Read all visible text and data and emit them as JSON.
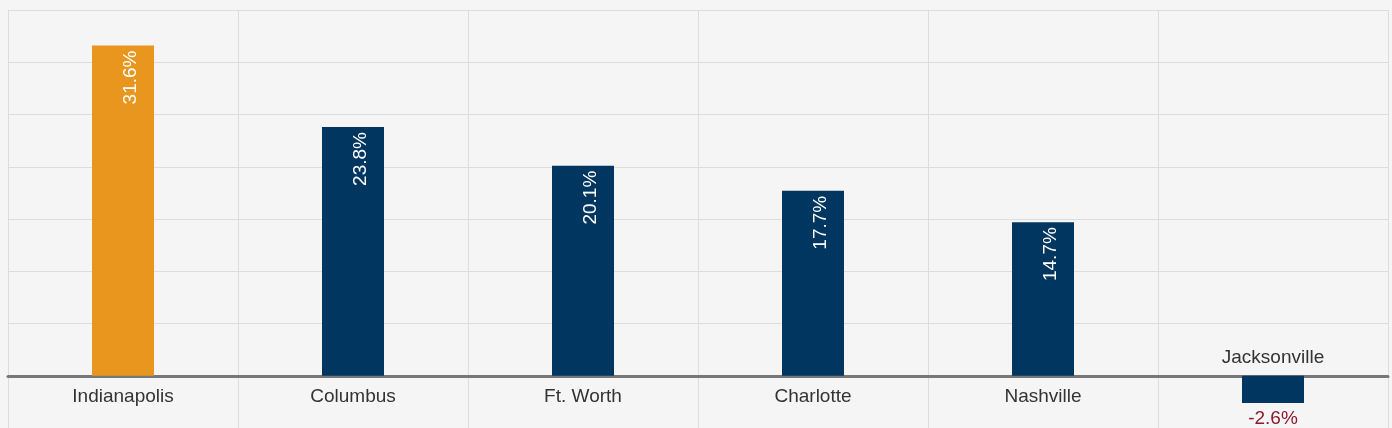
{
  "chart_data": {
    "type": "bar",
    "categories": [
      "Indianapolis",
      "Columbus",
      "Ft. Worth",
      "Charlotte",
      "Nashville",
      "Jacksonville"
    ],
    "values": [
      31.6,
      23.8,
      20.1,
      17.7,
      14.7,
      -2.6
    ],
    "colors": [
      "#e8961e",
      "#003660",
      "#003660",
      "#003660",
      "#003660",
      "#003660"
    ],
    "value_labels": [
      "31.6%",
      "23.8%",
      "20.1%",
      "17.7%",
      "14.7%",
      "-2.6%"
    ],
    "ylim": [
      -5,
      35
    ],
    "tick_labels": "x",
    "grid": true
  }
}
